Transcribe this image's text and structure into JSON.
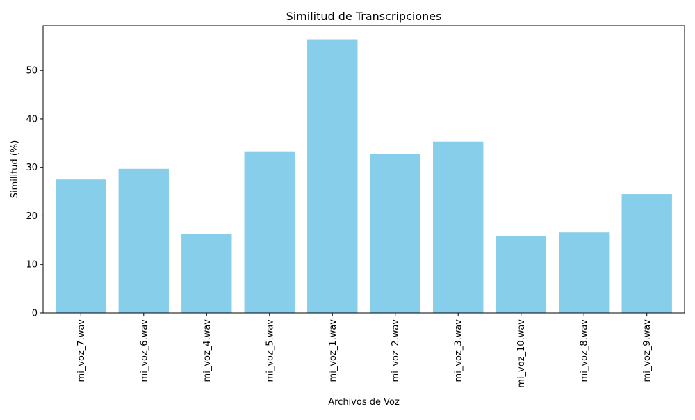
{
  "chart_data": {
    "type": "bar",
    "title": "Similitud de Transcripciones",
    "xlabel": "Archivos de Voz",
    "ylabel": "Similitud (%)",
    "categories": [
      "mi_voz_7.wav",
      "mi_voz_6.wav",
      "mi_voz_4.wav",
      "mi_voz_5.wav",
      "mi_voz_1.wav",
      "mi_voz_2.wav",
      "mi_voz_3.wav",
      "mi_voz_10.wav",
      "mi_voz_8.wav",
      "mi_voz_9.wav"
    ],
    "values": [
      27.5,
      29.7,
      16.3,
      33.3,
      56.4,
      32.7,
      35.3,
      15.9,
      16.6,
      24.5
    ],
    "yticks": [
      0,
      10,
      20,
      30,
      40,
      50
    ],
    "ylim": [
      0,
      59.2
    ],
    "bar_color": "#87ceeb",
    "grid": false,
    "legend": "none"
  }
}
